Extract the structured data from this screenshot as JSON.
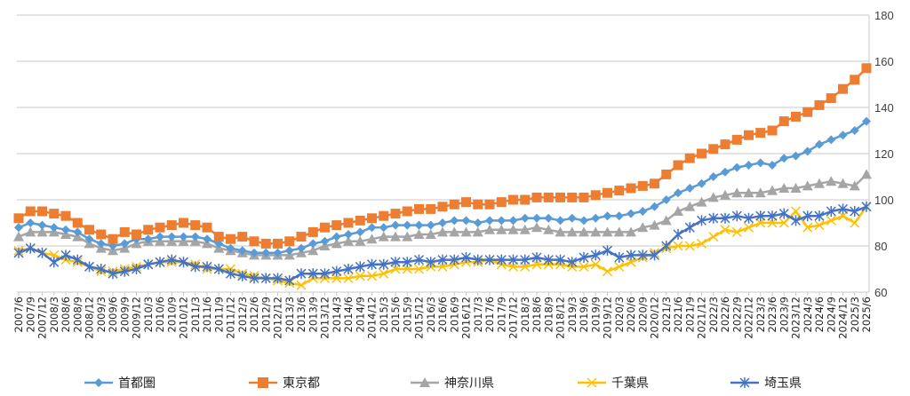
{
  "chart_data": {
    "type": "line",
    "title": "",
    "xlabel": "",
    "ylabel": "",
    "ylim": [
      60,
      180
    ],
    "yticks": [
      60,
      80,
      100,
      120,
      140,
      160,
      180
    ],
    "y_axis_side": "right",
    "grid": true,
    "legend_position": "bottom",
    "categories": [
      "2007/6",
      "2007/9",
      "2007/12",
      "2008/3",
      "2008/6",
      "2008/9",
      "2008/12",
      "2009/3",
      "2009/6",
      "2009/9",
      "2009/12",
      "2010/3",
      "2010/6",
      "2010/9",
      "2010/12",
      "2011/3",
      "2011/6",
      "2011/9",
      "2011/12",
      "2012/3",
      "2012/6",
      "2012/9",
      "2012/12",
      "2013/3",
      "2013/6",
      "2013/9",
      "2013/12",
      "2014/3",
      "2014/6",
      "2014/9",
      "2014/12",
      "2015/3",
      "2015/6",
      "2015/9",
      "2015/12",
      "2016/3",
      "2016/6",
      "2016/9",
      "2016/12",
      "2017/3",
      "2017/6",
      "2017/9",
      "2017/12",
      "2018/3",
      "2018/6",
      "2018/9",
      "2018/12",
      "2019/3",
      "2019/6",
      "2019/9",
      "2019/12",
      "2020/3",
      "2020/6",
      "2020/9",
      "2020/12",
      "2021/3",
      "2021/6",
      "2021/9",
      "2021/12",
      "2022/3",
      "2022/6",
      "2022/9",
      "2022/12",
      "2023/3",
      "2023/6",
      "2023/9",
      "2023/12",
      "2024/3",
      "2024/6",
      "2024/9",
      "2024/12",
      "2025/3",
      "2025/6"
    ],
    "series": [
      {
        "name": "首都圏",
        "color": "#5b9bd5",
        "marker": "diamond",
        "values": [
          88,
          90,
          89,
          88,
          87,
          86,
          83,
          81,
          80,
          81,
          83,
          83,
          84,
          84,
          84,
          84,
          83,
          81,
          79,
          78,
          77,
          77,
          77,
          78,
          79,
          81,
          82,
          84,
          85,
          86,
          88,
          88,
          89,
          89,
          89,
          89,
          90,
          91,
          91,
          90,
          91,
          91,
          91,
          92,
          92,
          92,
          91,
          92,
          91,
          92,
          93,
          93,
          94,
          95,
          97,
          100,
          103,
          105,
          107,
          110,
          112,
          114,
          115,
          116,
          115,
          118,
          119,
          121,
          124,
          126,
          128,
          130,
          134
        ]
      },
      {
        "name": "東京都",
        "color": "#ed7d31",
        "marker": "square",
        "values": [
          92,
          95,
          95,
          94,
          93,
          90,
          87,
          85,
          83,
          86,
          85,
          87,
          88,
          89,
          90,
          89,
          88,
          84,
          83,
          84,
          82,
          81,
          81,
          82,
          84,
          86,
          88,
          89,
          90,
          91,
          92,
          93,
          94,
          95,
          96,
          96,
          97,
          98,
          99,
          98,
          98,
          99,
          100,
          100,
          101,
          101,
          101,
          101,
          101,
          102,
          103,
          104,
          105,
          106,
          107,
          111,
          115,
          118,
          120,
          122,
          124,
          126,
          128,
          129,
          130,
          134,
          136,
          138,
          141,
          144,
          148,
          152,
          157
        ]
      },
      {
        "name": "神奈川県",
        "color": "#a5a5a5",
        "marker": "triangle",
        "values": [
          84,
          86,
          86,
          86,
          85,
          84,
          81,
          79,
          78,
          79,
          81,
          82,
          82,
          82,
          82,
          82,
          81,
          79,
          78,
          77,
          76,
          76,
          76,
          76,
          77,
          78,
          80,
          81,
          82,
          82,
          83,
          84,
          84,
          84,
          85,
          85,
          86,
          86,
          86,
          86,
          87,
          87,
          87,
          87,
          88,
          87,
          86,
          86,
          86,
          86,
          86,
          86,
          86,
          88,
          89,
          91,
          95,
          97,
          99,
          101,
          102,
          103,
          103,
          103,
          104,
          105,
          105,
          106,
          107,
          108,
          107,
          106,
          111
        ]
      },
      {
        "name": "千葉県",
        "color": "#ffc000",
        "marker": "x",
        "values": [
          78,
          79,
          77,
          76,
          74,
          73,
          71,
          69,
          69,
          70,
          71,
          72,
          73,
          73,
          73,
          72,
          70,
          70,
          70,
          68,
          67,
          66,
          65,
          64,
          63,
          66,
          66,
          66,
          66,
          67,
          67,
          68,
          70,
          70,
          70,
          71,
          71,
          72,
          73,
          73,
          74,
          72,
          71,
          71,
          72,
          72,
          72,
          71,
          71,
          72,
          69,
          71,
          73,
          75,
          77,
          79,
          80,
          80,
          81,
          84,
          87,
          86,
          88,
          90,
          90,
          90,
          95,
          88,
          89,
          91,
          93,
          90,
          97
        ]
      },
      {
        "name": "埼玉県",
        "color": "#4472c4",
        "marker": "star",
        "values": [
          77,
          79,
          77,
          73,
          76,
          74,
          71,
          70,
          68,
          69,
          70,
          72,
          73,
          74,
          73,
          71,
          71,
          70,
          68,
          67,
          66,
          66,
          66,
          65,
          68,
          68,
          68,
          69,
          70,
          71,
          72,
          72,
          73,
          73,
          74,
          73,
          74,
          74,
          75,
          74,
          74,
          74,
          74,
          74,
          75,
          74,
          74,
          73,
          75,
          76,
          78,
          75,
          76,
          76,
          76,
          80,
          85,
          88,
          91,
          92,
          92,
          93,
          92,
          93,
          93,
          94,
          91,
          93,
          93,
          95,
          96,
          95,
          97
        ]
      }
    ]
  }
}
